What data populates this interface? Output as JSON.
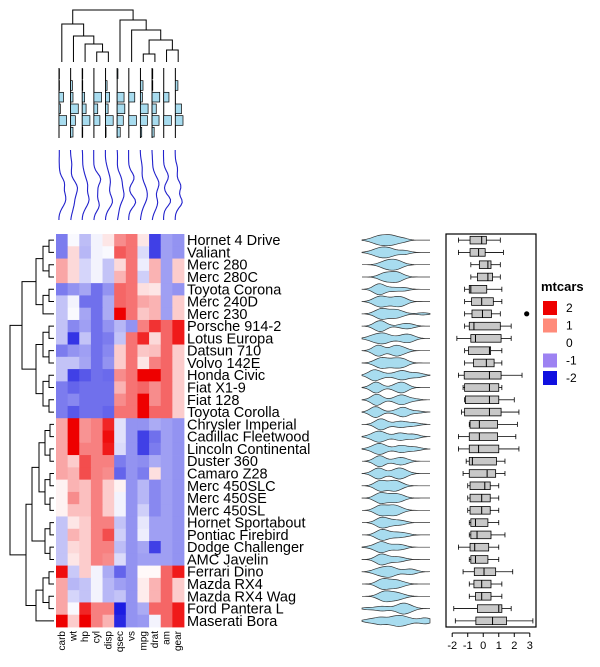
{
  "chart_data": {
    "type": "heatmap",
    "title": "",
    "columns": [
      "carb",
      "wt",
      "hp",
      "cyl",
      "disp",
      "qsec",
      "vs",
      "mpg",
      "drat",
      "am",
      "gear"
    ],
    "rows": [
      "Hornet 4 Drive",
      "Valiant",
      "Merc 280",
      "Merc 280C",
      "Toyota Corona",
      "Merc 240D",
      "Merc 230",
      "Porsche 914-2",
      "Lotus Europa",
      "Datsun 710",
      "Volvo 142E",
      "Honda Civic",
      "Fiat X1-9",
      "Fiat 128",
      "Toyota Corolla",
      "Chrysler Imperial",
      "Cadillac Fleetwood",
      "Lincoln Continental",
      "Duster 360",
      "Camaro Z28",
      "Merc 450SLC",
      "Merc 450SE",
      "Merc 450SL",
      "Hornet Sportabout",
      "Pontiac Firebird",
      "Dodge Challenger",
      "AMC Javelin",
      "Ferrari Dino",
      "Mazda RX4",
      "Mazda RX4 Wag",
      "Ford Pantera L",
      "Maserati Bora"
    ],
    "values": [
      [
        -1.1,
        -0.05,
        -0.55,
        -0.1,
        0.2,
        0.9,
        1.1,
        0.2,
        -1.6,
        -0.8,
        -0.9
      ],
      [
        -1.1,
        0.3,
        -0.6,
        -0.1,
        -0.05,
        1.3,
        1.1,
        -0.3,
        -1.6,
        -0.8,
        -0.9
      ],
      [
        0.7,
        0.3,
        -0.35,
        -0.1,
        -0.5,
        0.3,
        1.1,
        -0.15,
        0.6,
        -0.8,
        0.4
      ],
      [
        0.7,
        0.3,
        -0.35,
        -0.1,
        -0.5,
        0.6,
        1.1,
        -0.4,
        0.6,
        -0.8,
        0.4
      ],
      [
        -1.1,
        -0.9,
        -0.75,
        -1.2,
        -0.9,
        1.2,
        1.1,
        0.25,
        0.2,
        -0.8,
        -0.9
      ],
      [
        -0.5,
        -0.1,
        -1.2,
        -1.2,
        -0.7,
        1.2,
        1.1,
        0.7,
        0.6,
        -0.8,
        0.4
      ],
      [
        -0.5,
        -0.05,
        -0.75,
        -1.2,
        -0.7,
        2.8,
        1.1,
        0.45,
        0.6,
        -0.8,
        0.4
      ],
      [
        -0.5,
        -1.0,
        -0.8,
        -1.2,
        -0.9,
        -0.6,
        -0.9,
        1.0,
        1.6,
        1.2,
        1.8
      ],
      [
        -0.5,
        -1.7,
        -0.5,
        -1.2,
        -1.1,
        -0.5,
        1.1,
        1.7,
        0.3,
        1.2,
        1.8
      ],
      [
        -1.1,
        -0.9,
        -0.8,
        -1.2,
        -1.0,
        0.4,
        1.1,
        0.45,
        0.5,
        1.2,
        0.4
      ],
      [
        -0.5,
        -0.5,
        -0.75,
        -1.2,
        -0.9,
        0.4,
        1.1,
        0.2,
        1.0,
        1.2,
        0.4
      ],
      [
        -0.5,
        -1.6,
        -1.4,
        -1.2,
        -1.25,
        0.9,
        1.1,
        2.0,
        2.5,
        1.2,
        0.4
      ],
      [
        -1.1,
        -1.3,
        -1.2,
        -1.2,
        -1.2,
        0.6,
        1.1,
        1.2,
        0.9,
        1.2,
        0.4
      ],
      [
        -1.1,
        -1.0,
        -1.2,
        -1.2,
        -1.2,
        0.9,
        1.1,
        2.0,
        0.9,
        1.2,
        0.4
      ],
      [
        -1.1,
        -1.4,
        -1.2,
        -1.2,
        -1.3,
        1.1,
        1.1,
        2.3,
        1.2,
        1.2,
        0.4
      ],
      [
        0.7,
        2.2,
        0.85,
        1.0,
        1.7,
        -0.25,
        -0.9,
        -0.9,
        -0.7,
        -0.8,
        -0.9
      ],
      [
        0.7,
        2.1,
        0.85,
        1.0,
        1.9,
        -0.25,
        -0.9,
        -1.6,
        -1.2,
        -0.8,
        -0.9
      ],
      [
        0.7,
        2.3,
        1.0,
        1.0,
        1.8,
        -0.3,
        -0.9,
        -1.6,
        -1.1,
        -0.8,
        -0.9
      ],
      [
        0.7,
        0.4,
        1.4,
        1.0,
        1.0,
        -1.1,
        -0.9,
        -0.95,
        -0.7,
        -0.8,
        -0.9
      ],
      [
        0.7,
        0.6,
        1.4,
        1.0,
        0.9,
        -1.3,
        -0.9,
        -1.1,
        0.25,
        -0.8,
        -0.9
      ],
      [
        0.1,
        0.6,
        0.5,
        1.0,
        0.4,
        0.1,
        -0.9,
        -0.6,
        -1.0,
        -0.8,
        -0.9
      ],
      [
        0.1,
        0.9,
        0.5,
        1.0,
        0.4,
        -0.1,
        -0.9,
        -0.6,
        -1.0,
        -0.8,
        -0.9
      ],
      [
        0.1,
        0.5,
        0.5,
        1.0,
        0.4,
        -0.1,
        -0.9,
        -0.4,
        -1.0,
        -0.8,
        -0.9
      ],
      [
        -0.5,
        0.2,
        0.4,
        1.0,
        1.0,
        -0.5,
        -0.9,
        -0.2,
        -0.8,
        -0.8,
        -0.9
      ],
      [
        -0.5,
        0.6,
        0.4,
        1.0,
        1.4,
        -0.4,
        -0.9,
        -0.15,
        -0.8,
        -0.8,
        -0.9
      ],
      [
        -0.5,
        0.3,
        0.4,
        1.0,
        1.0,
        -0.55,
        -0.9,
        -0.75,
        -1.6,
        -0.8,
        -0.9
      ],
      [
        -0.5,
        0.2,
        0.4,
        1.0,
        0.9,
        -0.3,
        -0.9,
        -0.8,
        -0.8,
        -0.8,
        -0.9
      ],
      [
        1.9,
        -0.45,
        0.4,
        -0.1,
        -0.7,
        -1.3,
        -0.9,
        0.05,
        0.05,
        1.2,
        1.8
      ],
      [
        0.7,
        -0.6,
        -0.5,
        -0.1,
        -0.6,
        -0.8,
        -0.9,
        0.15,
        0.6,
        1.2,
        0.4
      ],
      [
        0.7,
        -0.35,
        -0.5,
        -0.1,
        -0.6,
        -0.5,
        -0.9,
        0.15,
        0.6,
        1.2,
        0.4
      ],
      [
        0.7,
        -0.05,
        1.7,
        1.0,
        1.0,
        -1.9,
        -0.9,
        -0.7,
        1.2,
        1.2,
        1.8
      ],
      [
        3.2,
        0.4,
        2.8,
        1.0,
        0.6,
        -1.8,
        -0.9,
        -0.85,
        -0.1,
        1.2,
        1.8
      ]
    ],
    "legend": {
      "title": "mtcars",
      "items": [
        {
          "label": "2",
          "color": "#ee0000"
        },
        {
          "label": "1",
          "color": "#ff8b7a"
        },
        {
          "label": "0",
          "color": "#ffffff"
        },
        {
          "label": "-1",
          "color": "#9d82f2"
        },
        {
          "label": "-2",
          "color": "#1010e0"
        }
      ],
      "placement": "right"
    },
    "colors": {
      "high": "#ee0000",
      "mid": "#ffffff",
      "low": "#1010e0",
      "violin": "#a8dcef",
      "box": "#c8c8c8",
      "bars": "#a8dcef",
      "col_density": "#2222cc"
    },
    "boxplot_axis": {
      "ticks": [
        "-2",
        "-1",
        "0",
        "1",
        "2",
        "3"
      ],
      "lim": [
        -2.4,
        3.4
      ]
    },
    "col_dendrogram": {
      "order": [
        "carb",
        "wt",
        "hp",
        "cyl",
        "disp",
        "qsec",
        "vs",
        "mpg",
        "drat",
        "am",
        "gear"
      ]
    },
    "grid": false
  }
}
